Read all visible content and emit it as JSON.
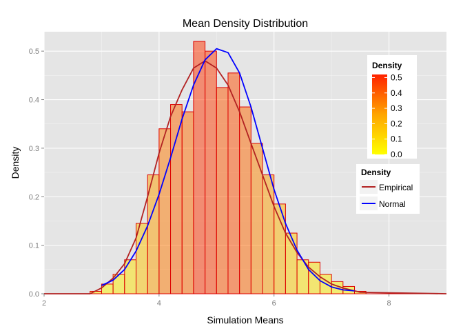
{
  "chart_data": {
    "type": "bar",
    "title": "Mean Density Distribution",
    "xlabel": "Simulation Means",
    "ylabel": "Density",
    "xlim": [
      2,
      9
    ],
    "ylim": [
      0,
      0.54
    ],
    "x_ticks": [
      2,
      4,
      6,
      8
    ],
    "y_ticks": [
      0.0,
      0.1,
      0.2,
      0.3,
      0.4,
      0.5
    ],
    "x_tick_labels": [
      "2",
      "4",
      "6",
      "8"
    ],
    "y_tick_labels": [
      "0.0",
      "0.1",
      "0.2",
      "0.3",
      "0.4",
      "0.5"
    ],
    "grid": true,
    "histogram": {
      "bin_width": 0.2,
      "bin_starts": [
        2.8,
        3.0,
        3.2,
        3.4,
        3.6,
        3.8,
        4.0,
        4.2,
        4.4,
        4.6,
        4.8,
        5.0,
        5.2,
        5.4,
        5.6,
        5.8,
        6.0,
        6.2,
        6.4,
        6.6,
        6.8,
        7.0,
        7.2,
        7.4
      ],
      "values": [
        0.005,
        0.02,
        0.04,
        0.07,
        0.145,
        0.245,
        0.34,
        0.39,
        0.375,
        0.52,
        0.5,
        0.425,
        0.455,
        0.385,
        0.31,
        0.245,
        0.185,
        0.125,
        0.07,
        0.065,
        0.04,
        0.025,
        0.015,
        0.005
      ],
      "fill_scale_colors": [
        "#ffff00",
        "#ff3300"
      ],
      "fill_alpha": 0.5,
      "border_color": "#dd0000"
    },
    "series": [
      {
        "name": "Empirical",
        "color": "#b22222",
        "x": [
          2.0,
          2.8,
          3.0,
          3.2,
          3.4,
          3.6,
          3.8,
          4.0,
          4.2,
          4.4,
          4.6,
          4.8,
          5.0,
          5.2,
          5.4,
          5.6,
          5.8,
          6.0,
          6.2,
          6.4,
          6.6,
          6.8,
          7.0,
          7.2,
          7.4,
          7.5,
          9.0
        ],
        "y": [
          0.0,
          0.0,
          0.012,
          0.032,
          0.062,
          0.115,
          0.2,
          0.29,
          0.365,
          0.42,
          0.465,
          0.48,
          0.465,
          0.43,
          0.375,
          0.31,
          0.245,
          0.18,
          0.125,
          0.085,
          0.055,
          0.035,
          0.02,
          0.012,
          0.006,
          0.003,
          0.0
        ]
      },
      {
        "name": "Normal",
        "color": "#0000ff",
        "x": [
          3.0,
          3.2,
          3.4,
          3.6,
          3.8,
          4.0,
          4.2,
          4.4,
          4.6,
          4.8,
          5.0,
          5.2,
          5.4,
          5.6,
          5.8,
          6.0,
          6.2,
          6.4,
          6.6,
          6.8,
          7.0,
          7.2,
          7.4
        ],
        "y": [
          0.017,
          0.028,
          0.05,
          0.088,
          0.14,
          0.205,
          0.28,
          0.36,
          0.43,
          0.482,
          0.505,
          0.497,
          0.455,
          0.385,
          0.3,
          0.215,
          0.145,
          0.09,
          0.05,
          0.027,
          0.014,
          0.008,
          0.006
        ]
      }
    ],
    "legends": {
      "fill": {
        "title": "Density",
        "placement": "right",
        "labels": [
          "0.5",
          "0.4",
          "0.3",
          "0.2",
          "0.1",
          "0.0"
        ],
        "values": [
          0.5,
          0.4,
          0.3,
          0.2,
          0.1,
          0.0
        ]
      },
      "lines": {
        "title": "Density",
        "placement": "right",
        "entries": [
          "Empirical",
          "Normal"
        ]
      }
    },
    "colors": {
      "panel_background": "#e5e5e5",
      "gridline": "#ffffff",
      "baseline": "#cc0000"
    }
  }
}
